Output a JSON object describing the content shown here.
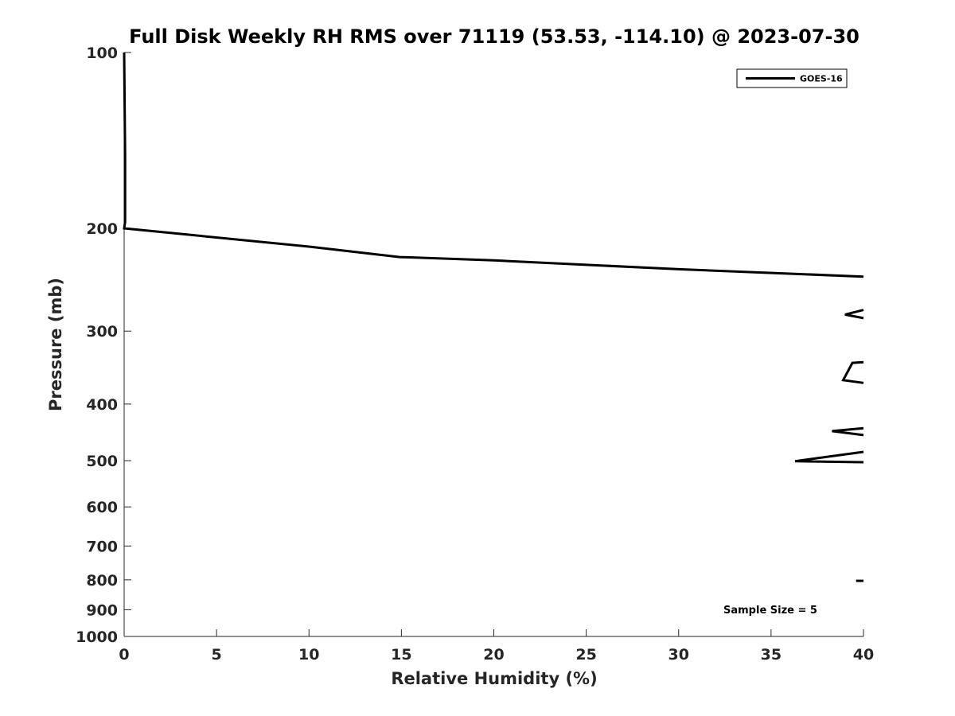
{
  "chart_data": {
    "type": "line",
    "title": "Full Disk Weekly RH RMS over 71119 (53.53, -114.10) @ 2023-07-30",
    "xlabel": "Relative Humidity (%)",
    "ylabel": "Pressure (mb)",
    "xlim": [
      0,
      40
    ],
    "ylim": [
      1000,
      100
    ],
    "y_scale": "log",
    "y_reversed": true,
    "x_ticks": [
      0,
      5,
      10,
      15,
      20,
      25,
      30,
      35,
      40
    ],
    "y_ticks": [
      100,
      200,
      300,
      400,
      500,
      600,
      700,
      800,
      900,
      1000
    ],
    "grid": false,
    "legend_position": "top-right",
    "series": [
      {
        "name": "GOES-16",
        "color": "#000000",
        "segments": [
          [
            {
              "x": 0,
              "y": 100
            },
            {
              "x": 0.05,
              "y": 150
            },
            {
              "x": 0.05,
              "y": 195
            },
            {
              "x": 0,
              "y": 200
            },
            {
              "x": 10,
              "y": 215
            },
            {
              "x": 14.9,
              "y": 224
            },
            {
              "x": 20,
              "y": 227
            },
            {
              "x": 30,
              "y": 235
            },
            {
              "x": 40,
              "y": 242
            }
          ],
          [
            {
              "x": 40,
              "y": 276
            },
            {
              "x": 39,
              "y": 281
            },
            {
              "x": 40,
              "y": 285
            }
          ],
          [
            {
              "x": 40,
              "y": 339
            },
            {
              "x": 39.4,
              "y": 340
            },
            {
              "x": 38.9,
              "y": 364
            },
            {
              "x": 40,
              "y": 368
            }
          ],
          [
            {
              "x": 40,
              "y": 440
            },
            {
              "x": 38.3,
              "y": 445
            },
            {
              "x": 40,
              "y": 452
            }
          ],
          [
            {
              "x": 40,
              "y": 483
            },
            {
              "x": 36.3,
              "y": 501
            },
            {
              "x": 40,
              "y": 503
            }
          ],
          [
            {
              "x": 39.6,
              "y": 803
            },
            {
              "x": 40,
              "y": 803
            }
          ]
        ]
      }
    ],
    "annotations": [
      {
        "text": "Sample Size = 5",
        "position": "bottom-right"
      }
    ]
  }
}
